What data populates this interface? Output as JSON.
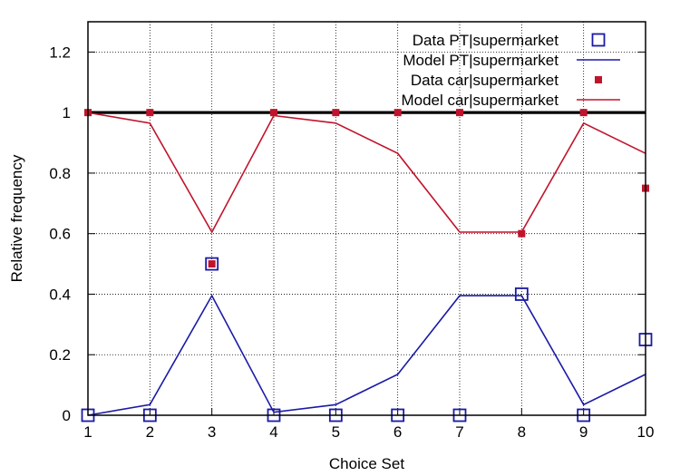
{
  "chart_data": {
    "type": "line",
    "xlabel": "Choice Set",
    "ylabel": "Relative frequency",
    "x": [
      1,
      2,
      3,
      4,
      5,
      6,
      7,
      8,
      9,
      10
    ],
    "xlim": [
      1,
      10
    ],
    "ylim": [
      0,
      1.3
    ],
    "xticks": [
      "1",
      "2",
      "3",
      "4",
      "5",
      "6",
      "7",
      "8",
      "9",
      "10"
    ],
    "yticks": [
      {
        "value": 0,
        "label": "0"
      },
      {
        "value": 0.2,
        "label": "0.2"
      },
      {
        "value": 0.4,
        "label": "0.4"
      },
      {
        "value": 0.6,
        "label": "0.6"
      },
      {
        "value": 0.8,
        "label": "0.8"
      },
      {
        "value": 1,
        "label": "1"
      },
      {
        "value": 1.2,
        "label": "1.2"
      }
    ],
    "grid": true,
    "reference_line": {
      "y": 1,
      "color": "#000000"
    },
    "legend_position": "top-right",
    "series": [
      {
        "name": "Data  PT|supermarket",
        "kind": "points",
        "marker": "open-square",
        "color": "#1a1aa6",
        "values": [
          0,
          0,
          0.5,
          0,
          0,
          0,
          0,
          0.4,
          0,
          0.25
        ]
      },
      {
        "name": "Model PT|supermarket",
        "kind": "line",
        "color": "#1a1aa6",
        "values": [
          0,
          0.035,
          0.395,
          0.01,
          0.035,
          0.135,
          0.395,
          0.395,
          0.035,
          0.135
        ]
      },
      {
        "name": "Data  car|supermarket",
        "kind": "points",
        "marker": "filled-square",
        "color": "#c0142c",
        "values": [
          1,
          1,
          0.5,
          1,
          1,
          1,
          1,
          0.6,
          1,
          0.75
        ]
      },
      {
        "name": "Model car|supermarket",
        "kind": "line",
        "color": "#c0142c",
        "values": [
          1,
          0.965,
          0.605,
          0.99,
          0.965,
          0.865,
          0.605,
          0.605,
          0.965,
          0.865
        ]
      }
    ]
  }
}
